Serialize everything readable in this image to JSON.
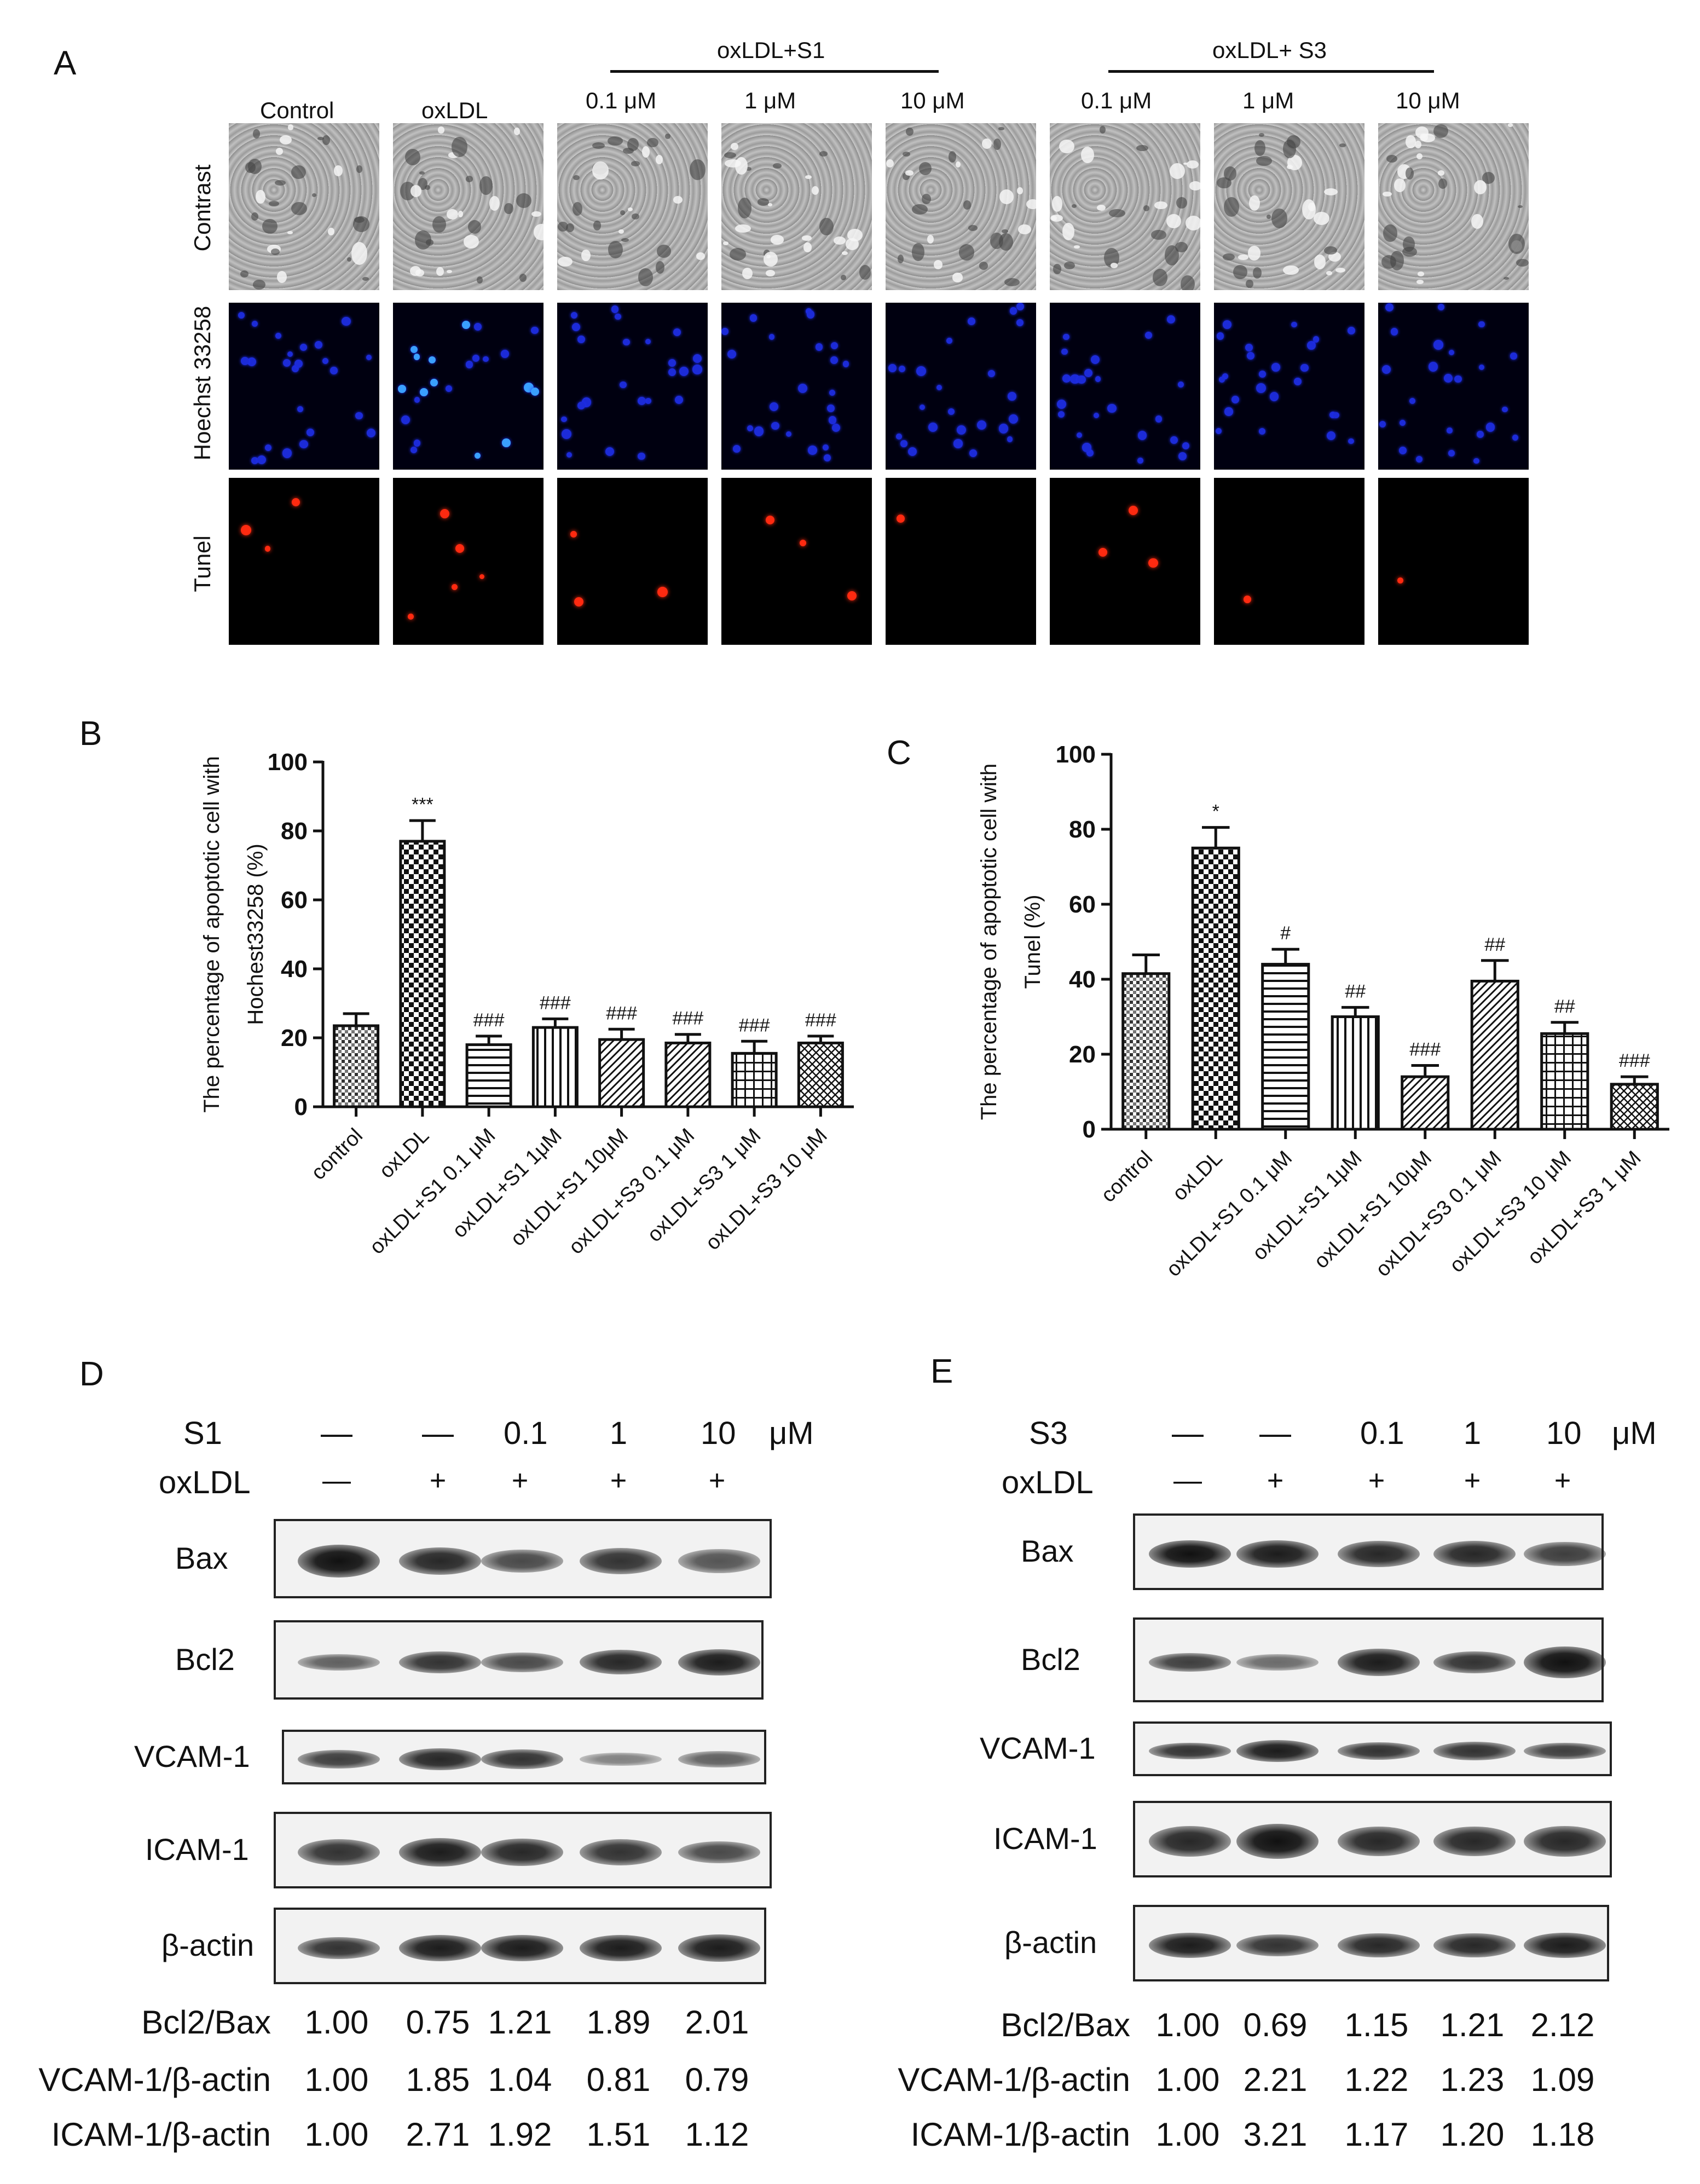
{
  "panelA": {
    "letter": "A",
    "group_s1": "oxLDL+S1",
    "group_s3": "oxLDL+ S3",
    "columns": [
      "Control",
      "oxLDL",
      "0.1 μM",
      "1 μM",
      "10 μM",
      "0.1 μM",
      "1 μM",
      "10 μM"
    ],
    "rows": [
      "Contrast",
      "Hoechst 33258",
      "Tunel"
    ]
  },
  "panelB": {
    "letter": "B"
  },
  "panelC": {
    "letter": "C"
  },
  "chart_data": [
    {
      "type": "bar",
      "ylabel": "The percentage of apoptotic cell with Hochest33258 (%)",
      "ylim": [
        0,
        100
      ],
      "yticks": [
        "0",
        "20",
        "40",
        "60",
        "80",
        "100"
      ],
      "categories": [
        "control",
        "oxLDL",
        "oxLDL+S1 0.1 μM",
        "oxLDL+S1 1μM",
        "oxLDL+S1 10μM",
        "oxLDL+S3 0.1 μM",
        "oxLDL+S3 1 μM",
        "oxLDL+S3 10 μM"
      ],
      "values": [
        23.5,
        77,
        18,
        23,
        19.5,
        18.5,
        15.5,
        18.5
      ],
      "errors": [
        3.5,
        6,
        2.5,
        2.5,
        3,
        2.5,
        3.5,
        2
      ],
      "annotations": [
        "",
        "***",
        "###",
        "###",
        "###",
        "###",
        "###",
        "###"
      ],
      "patterns": [
        "dots",
        "checker",
        "hlines",
        "vlines",
        "diag",
        "diag",
        "grid",
        "crosshatch"
      ]
    },
    {
      "type": "bar",
      "ylabel": "The percentage of apoptotic cell with Tunel (%)",
      "ylim": [
        0,
        100
      ],
      "yticks": [
        "0",
        "20",
        "40",
        "60",
        "80",
        "100"
      ],
      "categories": [
        "control",
        "oxLDL",
        "oxLDL+S1 0.1 μM",
        "oxLDL+S1 1μM",
        "oxLDL+S1 10μM",
        "oxLDL+S3 0.1 μM",
        "oxLDL+S3 10 μM",
        "oxLDL+S3 1 μM"
      ],
      "values": [
        41.5,
        75,
        44,
        30,
        14,
        39.5,
        25.5,
        12
      ],
      "errors": [
        5,
        5.5,
        4,
        2.5,
        3,
        5.5,
        3,
        2
      ],
      "annotations": [
        "",
        "*",
        "#",
        "##",
        "###",
        "##",
        "##",
        "###"
      ],
      "patterns": [
        "dots",
        "checker",
        "hlines",
        "vlines",
        "diag",
        "diag",
        "grid",
        "crosshatch"
      ]
    }
  ],
  "panelD": {
    "letter": "D",
    "treatment_label": "S1",
    "treatment_values": [
      "—",
      "—",
      "0.1",
      "1",
      "10"
    ],
    "unit": "μM",
    "oxldl_label": "oxLDL",
    "oxldl_values": [
      "—",
      "+",
      "+",
      "+",
      "+"
    ],
    "blots": [
      "Bax",
      "Bcl2",
      "VCAM-1",
      "ICAM-1",
      "β-actin"
    ],
    "ratios": [
      {
        "label": "Bcl2/Bax",
        "values": [
          "1.00",
          "0.75",
          "1.21",
          "1.89",
          "2.01"
        ]
      },
      {
        "label": "VCAM-1/β-actin",
        "values": [
          "1.00",
          "1.85",
          "1.04",
          "0.81",
          "0.79"
        ]
      },
      {
        "label": "ICAM-1/β-actin",
        "values": [
          "1.00",
          "2.71",
          "1.92",
          "1.51",
          "1.12"
        ]
      }
    ]
  },
  "panelE": {
    "letter": "E",
    "treatment_label": "S3",
    "treatment_values": [
      "—",
      "—",
      "0.1",
      "1",
      "10"
    ],
    "unit": "μM",
    "oxldl_label": "oxLDL",
    "oxldl_values": [
      "—",
      "+",
      "+",
      "+",
      "+"
    ],
    "blots": [
      "Bax",
      "Bcl2",
      "VCAM-1",
      "ICAM-1",
      "β-actin"
    ],
    "ratios": [
      {
        "label": "Bcl2/Bax",
        "values": [
          "1.00",
          "0.69",
          "1.15",
          "1.21",
          "2.12"
        ]
      },
      {
        "label": "VCAM-1/β-actin",
        "values": [
          "1.00",
          "2.21",
          "1.22",
          "1.23",
          "1.09"
        ]
      },
      {
        "label": "ICAM-1/β-actin",
        "values": [
          "1.00",
          "3.21",
          "1.17",
          "1.20",
          "1.18"
        ]
      }
    ]
  }
}
